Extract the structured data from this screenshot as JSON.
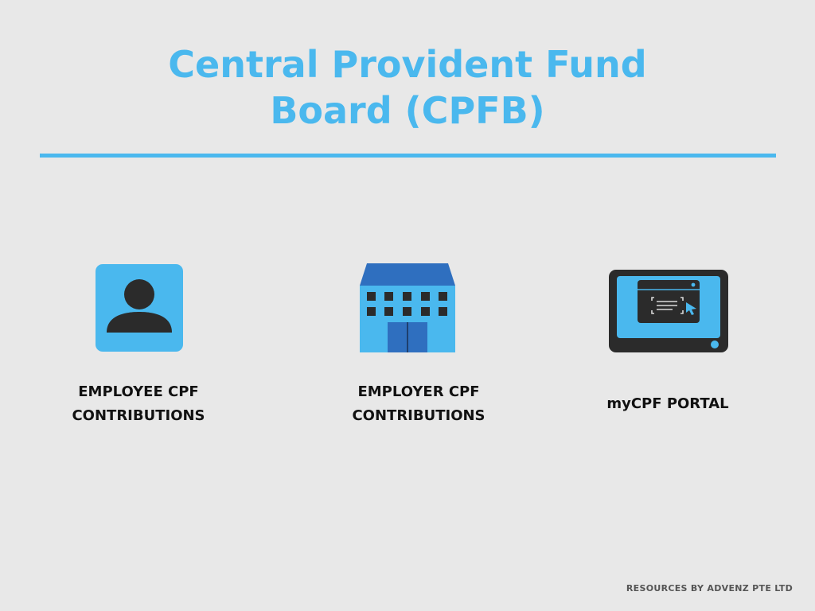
{
  "header": {
    "title_line1": "Central Provident Fund",
    "title_line2": "Board (CPFB)"
  },
  "cards": [
    {
      "icon": "person-icon",
      "label_line1": "EMPLOYEE CPF",
      "label_line2": "CONTRIBUTIONS"
    },
    {
      "icon": "office-building-icon",
      "label_line1": "EMPLOYER CPF",
      "label_line2": "CONTRIBUTIONS"
    },
    {
      "icon": "web-portal-icon",
      "label_line1": "myCPF PORTAL"
    }
  ],
  "footer": {
    "credit": "RESOURCES BY ADVENZ PTE LTD"
  },
  "colors": {
    "background": "#e8e8e8",
    "accent": "#4ab8ee",
    "dark": "#2b2b2b",
    "building_roof": "#2f6fbf"
  }
}
